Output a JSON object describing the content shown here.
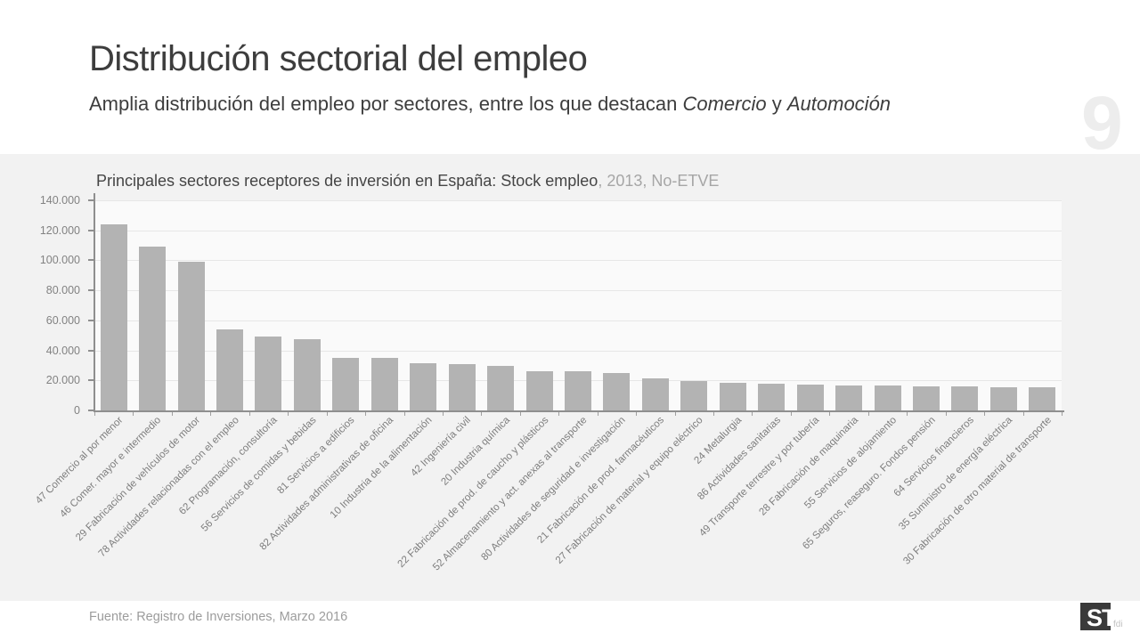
{
  "slide": {
    "title": "Distribución sectorial del empleo",
    "subtitle": {
      "prefix": "Amplia distribución del empleo por sectores, entre los que destacan ",
      "italic1": "Comercio",
      "separator": " y ",
      "italic2": "Automoción"
    },
    "page_number": "9",
    "footer": "Fuente: Registro de Inversiones, Marzo 2016",
    "logo": {
      "mark": "ST",
      "suffix": "fdi"
    }
  },
  "colors": {
    "panel_background": "#f2f2f2",
    "plot_background": "#fafafa",
    "bar": "#b3b3b3",
    "axis": "#8f8f8f",
    "gridline": "#e7e7e7",
    "title_text": "#3d3d3d",
    "muted_text": "#9c9c9c"
  },
  "chart_data": {
    "type": "bar",
    "title_main": "Principales sectores receptores de inversión en España: Stock empleo",
    "title_suffix": ", 2013, No-ETVE",
    "xlabel": "",
    "ylabel": "",
    "ylim": [
      0,
      140000
    ],
    "ytick_step": 20000,
    "ytick_labels": [
      "140.000",
      "120.000",
      "100.000",
      "80.000",
      "60.000",
      "40.000",
      "20.000",
      "0"
    ],
    "grid": true,
    "legend": false,
    "bar_color": "#b3b3b3",
    "categories": [
      "47 Comercio al por menor",
      "46 Comer. mayor e intermedio",
      "29 Fabricación de vehículos de motor",
      "78 Actividades relacionadas con el empleo",
      "62 Programación, consultoría",
      "56 Servicios de comidas y bebidas",
      "81 Servicios a edificios",
      "82 Actividades administrativas de oficina",
      "10 Industria de la alimentación",
      "42 Ingeniería civil",
      "20 Industria química",
      "22 Fabricación de prod. de caucho y plásticos",
      "52 Almacenamiento y act. anexas al transporte",
      "80 Actividades de seguridad e investigación",
      "21 Fabricación de prod. farmacéuticos",
      "27 Fabricación de material y equipo eléctrico",
      "24 Metalurgia",
      "86 Actividades sanitarias",
      "49 Transporte terrestre y por tubería",
      "28 Fabricación de maquinaria",
      "55 Servicios de alojamiento",
      "65 Seguros, reaseguro. Fondos pensión",
      "64 Servicios financieros",
      "35 Suministro de energía eléctrica",
      "30 Fabricación de otro material de transporte"
    ],
    "values": [
      123700,
      108900,
      99200,
      53700,
      49000,
      47200,
      35200,
      35000,
      31200,
      30800,
      29700,
      26300,
      26000,
      24700,
      21400,
      19800,
      18600,
      18000,
      17400,
      16800,
      16400,
      16000,
      15800,
      15500,
      15200
    ]
  }
}
